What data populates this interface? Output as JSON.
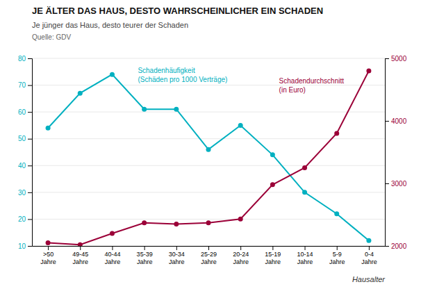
{
  "chart_data": {
    "type": "line",
    "title": "JE ÄLTER DAS HAUS, DESTO WAHRSCHEINLICHER EIN SCHADEN",
    "subtitle": "Je jünger das Haus, desto teurer der Schaden",
    "source": "Quelle: GDV",
    "xlabel": "Hausalter",
    "categories": [
      ">50\nJahre",
      "49-45\nJahre",
      "40-44\nJahre",
      "35-39\nJahre",
      "30-34\nJahre",
      "25-29\nJahre",
      "20-24\nJahre",
      "15-19\nJahre",
      "10-14\nJahre",
      "5-9\nJahre",
      "0-4\nJahre"
    ],
    "series": [
      {
        "color": "#00B0C0",
        "marker": "circle",
        "values": [
          54,
          67,
          74,
          61,
          61,
          46,
          55,
          44,
          30,
          22,
          12
        ]
      },
      {
        "color": "#9B0038",
        "marker": "circle",
        "axis": "y2",
        "values": [
          2050,
          2020,
          2200,
          2370,
          2350,
          2370,
          2430,
          2980,
          3250,
          3800,
          4800
        ]
      }
    ],
    "annotations": [
      "Schadenhäufigkeit\n(Schäden pro 1000 Verträge)",
      "Schadendurchschnitt\n(in Euro)"
    ],
    "ylim": [
      10,
      80
    ],
    "yticks": [
      10,
      20,
      30,
      40,
      50,
      60,
      70,
      80
    ],
    "y2lim": [
      2000,
      5000
    ],
    "y2ticks": [
      2000,
      3000,
      4000,
      5000
    ],
    "grid": true
  }
}
